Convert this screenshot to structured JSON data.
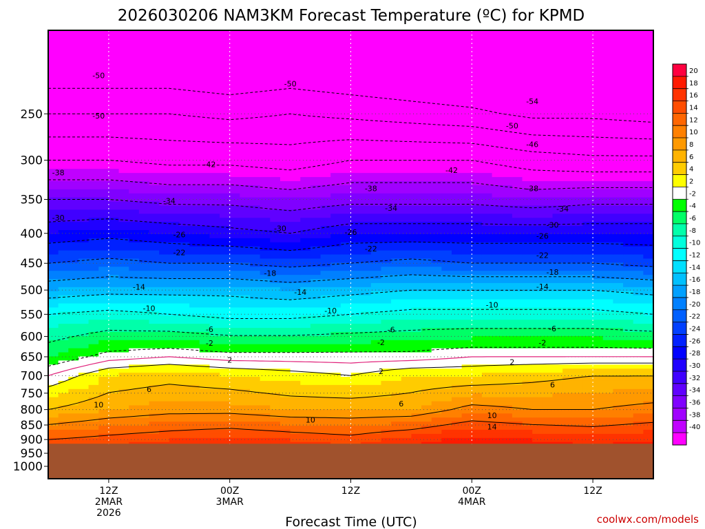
{
  "title": "2026030206 NAM3KM Forecast Temperature (ºC) for KPMD",
  "xlabel": "Forecast Time (UTC)",
  "credit": "coolwx.com/models",
  "colors": {
    "ground": "#a0522d",
    "contour_line": "#000000",
    "freezing_line": "#e0207a"
  },
  "chart_data": {
    "type": "heatmap",
    "title": "2026030206 NAM3KM Forecast Temperature (ºC) for KPMD",
    "xlabel": "Forecast Time (UTC)",
    "ylabel": "",
    "y_axis": "pressure (hPa), log scale, inverted",
    "ylim": [
      1050,
      180
    ],
    "xlim_hours": [
      0,
      60
    ],
    "grid": true,
    "y_ticks": [
      "250",
      "300",
      "350",
      "400",
      "450",
      "500",
      "550",
      "600",
      "650",
      "700",
      "750",
      "800",
      "850",
      "900",
      "950",
      "1000"
    ],
    "x_ticks": [
      {
        "hour": 6,
        "lines": [
          "12Z",
          "2MAR",
          "2026"
        ]
      },
      {
        "hour": 18,
        "lines": [
          "00Z",
          "3MAR"
        ]
      },
      {
        "hour": 30,
        "lines": [
          "12Z"
        ]
      },
      {
        "hour": 42,
        "lines": [
          "00Z",
          "4MAR"
        ]
      },
      {
        "hour": 54,
        "lines": [
          "12Z"
        ]
      }
    ],
    "colorbar": {
      "ticks": [
        "20",
        "18",
        "16",
        "14",
        "12",
        "10",
        "8",
        "6",
        "4",
        "2",
        "-2",
        "-4",
        "-6",
        "-8",
        "-10",
        "-12",
        "-14",
        "-16",
        "-18",
        "-20",
        "-22",
        "-24",
        "-26",
        "-28",
        "-30",
        "-32",
        "-34",
        "-36",
        "-38",
        "-40"
      ],
      "colors": [
        "#ff0040",
        "#ff1a00",
        "#ff3300",
        "#ff4d00",
        "#ff6600",
        "#ff8000",
        "#ff9900",
        "#ffb300",
        "#ffcc00",
        "#ffff00",
        "#ffffff",
        "#00ff00",
        "#00ff66",
        "#00ffaa",
        "#00ffdd",
        "#00ffff",
        "#00e0ff",
        "#00c0ff",
        "#00a0ff",
        "#0080ff",
        "#0060ff",
        "#0040ff",
        "#0020ff",
        "#0000ff",
        "#2000ff",
        "#4000ff",
        "#6000ff",
        "#8000ff",
        "#a000ff",
        "#c000ff",
        "#ff00ff"
      ]
    },
    "profiles": {
      "hours": [
        0,
        6,
        12,
        18,
        24,
        30,
        36,
        42,
        48,
        54,
        60
      ],
      "ground_pressure": 915,
      "levels": [
        1000,
        950,
        900,
        850,
        800,
        750,
        700,
        650,
        600,
        550,
        500,
        450,
        400,
        350,
        300,
        250,
        200
      ],
      "temps": [
        [
          14,
          6,
          0,
          -4,
          -10,
          -16,
          -22,
          -28,
          -34,
          -42,
          -50
        ],
        [
          15,
          8,
          4,
          -1,
          -9,
          -15,
          -21,
          -27,
          -34,
          -42,
          -50
        ],
        [
          16,
          9,
          5,
          0,
          -10,
          -15,
          -22,
          -28,
          -35,
          -43,
          -50
        ],
        [
          17,
          9,
          4,
          -1,
          -11,
          -15,
          -22,
          -29,
          -35,
          -43,
          -51
        ],
        [
          16,
          8,
          3,
          -1,
          -11,
          -16,
          -23,
          -30,
          -36,
          -44,
          -50
        ],
        [
          15,
          8,
          2,
          -1,
          -10,
          -15,
          -22,
          -28,
          -35,
          -42,
          -51
        ],
        [
          17,
          8,
          4,
          -1,
          -9,
          -14,
          -21,
          -28,
          -35,
          -42,
          -52
        ],
        [
          19,
          11,
          4,
          0,
          -9,
          -14,
          -22,
          -28,
          -35,
          -42,
          -53
        ],
        [
          18,
          10,
          5,
          0,
          -9,
          -14,
          -22,
          -28,
          -36,
          -44,
          -55
        ],
        [
          17,
          10,
          6,
          0,
          -9,
          -14,
          -22,
          -28,
          -35,
          -45,
          -55
        ],
        [
          18,
          11,
          6,
          0,
          -10,
          -15,
          -23,
          -28,
          -35,
          -45,
          -56
        ]
      ],
      "temp_levels": [
        900,
        800,
        700,
        650,
        550,
        500,
        450,
        400,
        350,
        300,
        250
      ]
    },
    "contour_labels": [
      {
        "text": "-50",
        "hour": 5,
        "p": 215
      },
      {
        "text": "-50",
        "hour": 24,
        "p": 222
      },
      {
        "text": "-50",
        "hour": 5,
        "p": 252
      },
      {
        "text": "-54",
        "hour": 48,
        "p": 238
      },
      {
        "text": "-50",
        "hour": 46,
        "p": 262
      },
      {
        "text": "-46",
        "hour": 48,
        "p": 282
      },
      {
        "text": "-42",
        "hour": 16,
        "p": 305
      },
      {
        "text": "-42",
        "hour": 40,
        "p": 312
      },
      {
        "text": "-38",
        "hour": 1,
        "p": 315
      },
      {
        "text": "-38",
        "hour": 32,
        "p": 335
      },
      {
        "text": "-38",
        "hour": 48,
        "p": 335
      },
      {
        "text": "-34",
        "hour": 12,
        "p": 352
      },
      {
        "text": "-34",
        "hour": 34,
        "p": 362
      },
      {
        "text": "-34",
        "hour": 51,
        "p": 363
      },
      {
        "text": "-30",
        "hour": 1,
        "p": 376
      },
      {
        "text": "-30",
        "hour": 23,
        "p": 392
      },
      {
        "text": "-30",
        "hour": 50,
        "p": 387
      },
      {
        "text": "-26",
        "hour": 13,
        "p": 402
      },
      {
        "text": "-26",
        "hour": 30,
        "p": 398
      },
      {
        "text": "-26",
        "hour": 49,
        "p": 404
      },
      {
        "text": "-22",
        "hour": 13,
        "p": 431
      },
      {
        "text": "-22",
        "hour": 32,
        "p": 425
      },
      {
        "text": "-22",
        "hour": 49,
        "p": 436
      },
      {
        "text": "-18",
        "hour": 22,
        "p": 468
      },
      {
        "text": "-18",
        "hour": 50,
        "p": 466
      },
      {
        "text": "-14",
        "hour": 9,
        "p": 494
      },
      {
        "text": "-14",
        "hour": 25,
        "p": 504
      },
      {
        "text": "-14",
        "hour": 49,
        "p": 493
      },
      {
        "text": "-10",
        "hour": 10,
        "p": 537
      },
      {
        "text": "-10",
        "hour": 28,
        "p": 542
      },
      {
        "text": "-10",
        "hour": 44,
        "p": 530
      },
      {
        "text": "-6",
        "hour": 16,
        "p": 583
      },
      {
        "text": "-6",
        "hour": 34,
        "p": 584
      },
      {
        "text": "-6",
        "hour": 50,
        "p": 582
      },
      {
        "text": "-2",
        "hour": 16,
        "p": 616
      },
      {
        "text": "-2",
        "hour": 33,
        "p": 614
      },
      {
        "text": "-2",
        "hour": 49,
        "p": 615
      },
      {
        "text": "2",
        "hour": 18,
        "p": 658
      },
      {
        "text": "2",
        "hour": 33,
        "p": 688
      },
      {
        "text": "2",
        "hour": 46,
        "p": 663
      },
      {
        "text": "6",
        "hour": 10,
        "p": 738
      },
      {
        "text": "6",
        "hour": 35,
        "p": 782
      },
      {
        "text": "6",
        "hour": 50,
        "p": 725
      },
      {
        "text": "10",
        "hour": 5,
        "p": 785
      },
      {
        "text": "10",
        "hour": 26,
        "p": 833
      },
      {
        "text": "10",
        "hour": 44,
        "p": 818
      },
      {
        "text": "14",
        "hour": 44,
        "p": 856
      }
    ]
  }
}
